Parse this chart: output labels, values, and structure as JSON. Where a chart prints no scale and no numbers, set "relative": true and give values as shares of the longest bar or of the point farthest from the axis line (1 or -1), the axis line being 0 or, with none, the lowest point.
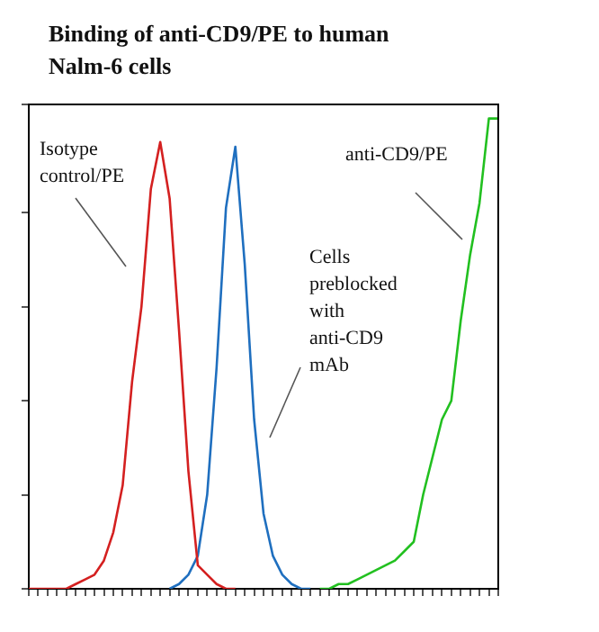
{
  "chart_data": {
    "type": "line",
    "title": "Binding of anti-CD9/PE to human Nalm-6 cells",
    "relative": true,
    "tick_labels": false,
    "grid": false,
    "legend": false,
    "marker": "none",
    "line_style": "solid",
    "categories": [
      null,
      null,
      null,
      null,
      null,
      null,
      null,
      null,
      null,
      null,
      null,
      null,
      null,
      null,
      null,
      null,
      null,
      null,
      null,
      null,
      null,
      null,
      null,
      null,
      null,
      null,
      null,
      null,
      null,
      null,
      null,
      null,
      null,
      null,
      null,
      null,
      null,
      null,
      null,
      null,
      null,
      null,
      null,
      null,
      null,
      null,
      null,
      null,
      null,
      null,
      null
    ],
    "series": [
      {
        "name": "Isotype control/PE",
        "color": "#d42020",
        "values": [
          0,
          0,
          0,
          0,
          0,
          0.01,
          0.02,
          0.03,
          0.06,
          0.12,
          0.22,
          0.44,
          0.6,
          0.85,
          0.95,
          0.83,
          0.55,
          0.25,
          0.05,
          0.03,
          0.01,
          0,
          0,
          null,
          null,
          null,
          null,
          null,
          null,
          null,
          null,
          null,
          null,
          null,
          null,
          null,
          null,
          null,
          null,
          null,
          null,
          null,
          null,
          null,
          null,
          null,
          null,
          null,
          null,
          null,
          null
        ]
      },
      {
        "name": "Cells preblocked with anti-CD9 mAb",
        "color": "#1f6fbf",
        "values": [
          null,
          null,
          null,
          null,
          null,
          null,
          null,
          null,
          null,
          null,
          null,
          null,
          null,
          null,
          null,
          0,
          0.01,
          0.03,
          0.07,
          0.2,
          0.47,
          0.81,
          0.94,
          0.69,
          0.36,
          0.16,
          0.07,
          0.03,
          0.01,
          0,
          0,
          null,
          null,
          null,
          null,
          null,
          null,
          null,
          null,
          null,
          null,
          null,
          null,
          null,
          null,
          null,
          null,
          null,
          null,
          null,
          null
        ]
      },
      {
        "name": "anti-CD9/PE",
        "color": "#22c020",
        "values": [
          null,
          null,
          null,
          null,
          null,
          null,
          null,
          null,
          null,
          null,
          null,
          null,
          null,
          null,
          null,
          null,
          null,
          null,
          null,
          null,
          null,
          null,
          null,
          null,
          null,
          null,
          null,
          null,
          null,
          null,
          null,
          0,
          0,
          0.01,
          0.01,
          0.02,
          0.03,
          0.04,
          0.05,
          0.06,
          0.08,
          0.1,
          0.2,
          0.28,
          0.36,
          0.4,
          0.57,
          0.71,
          0.82,
          1,
          1
        ]
      }
    ]
  }
}
